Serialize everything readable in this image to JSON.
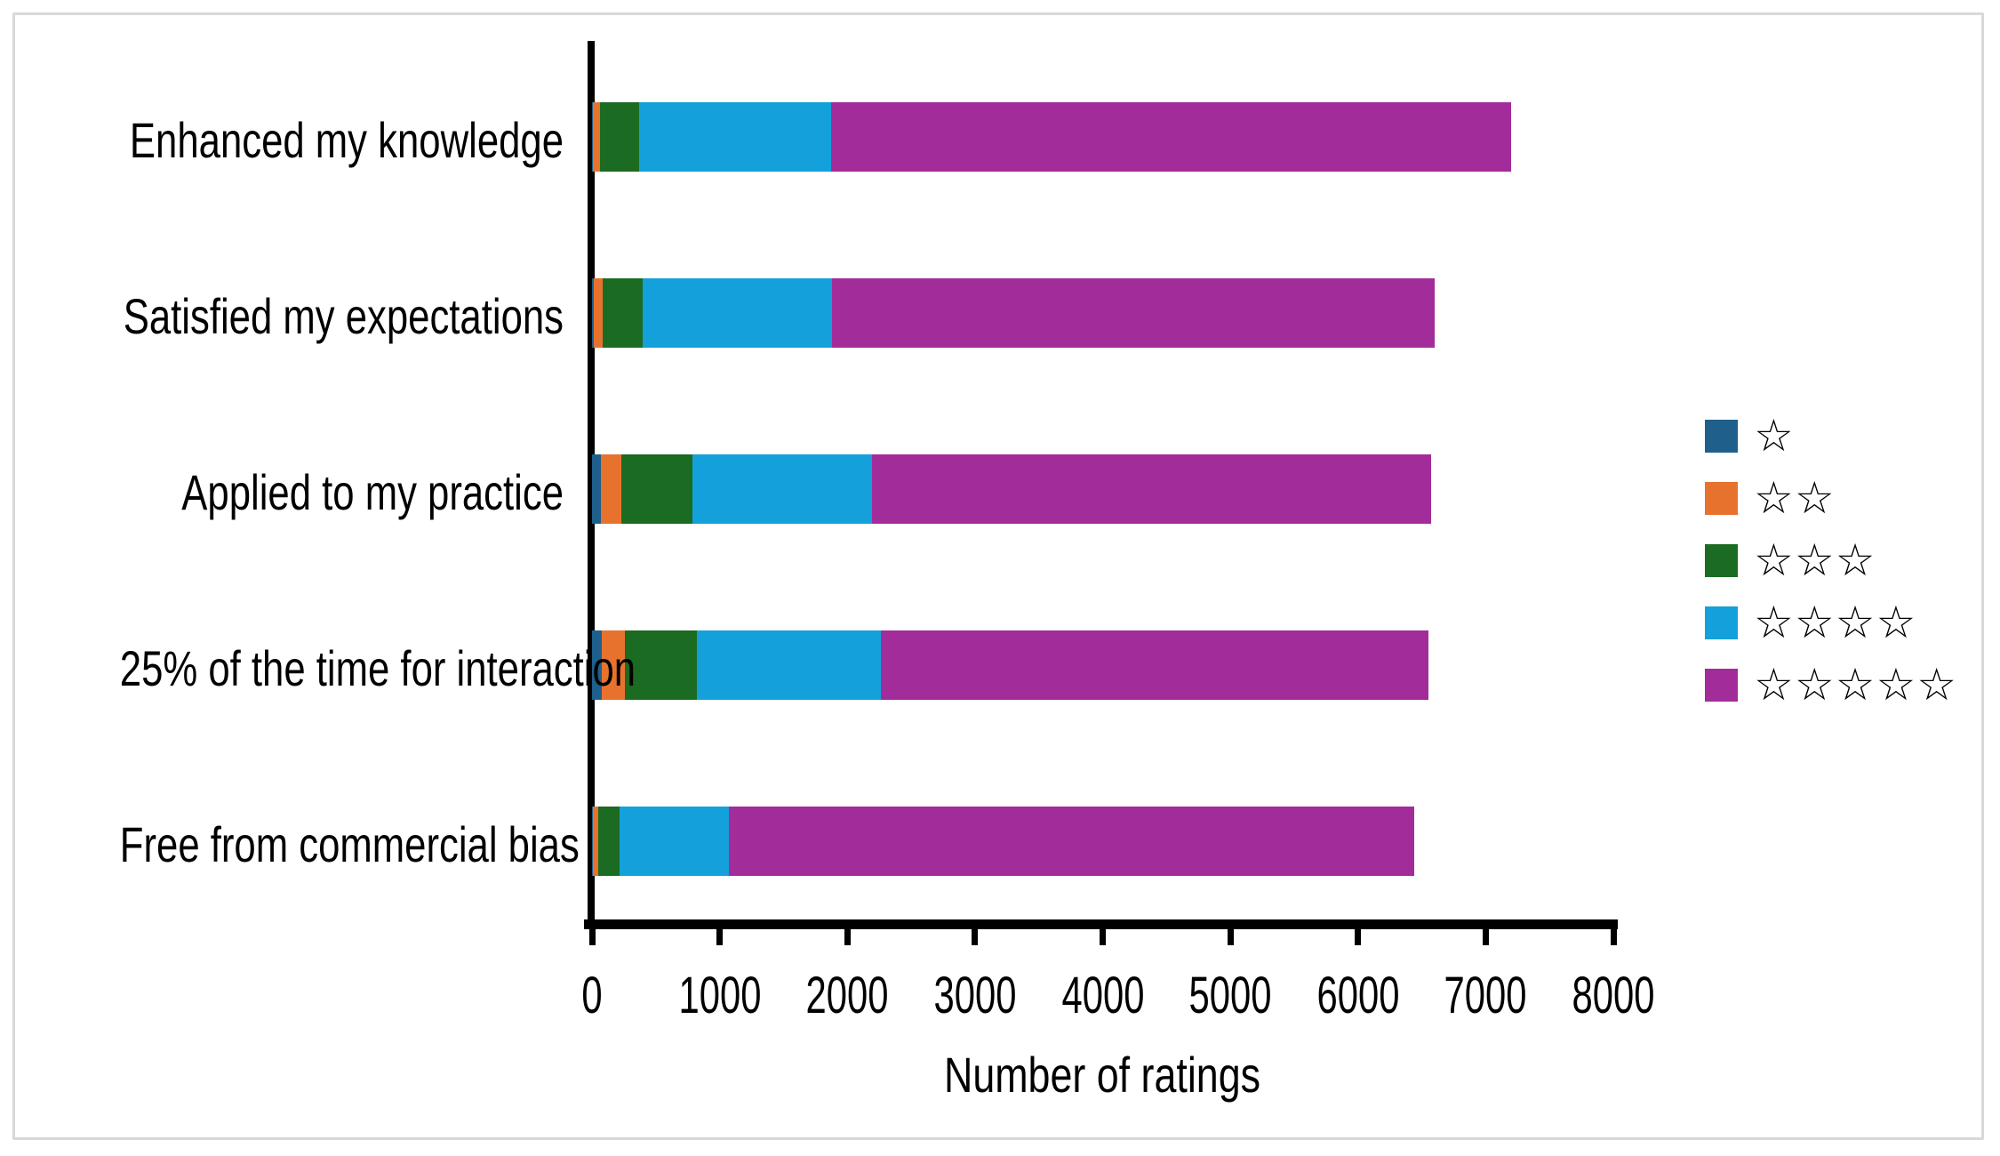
{
  "frame": {
    "background_color": "#ffffff",
    "border_color": "#d8d8d8",
    "axis_color": "#000000"
  },
  "chart_data": {
    "type": "bar",
    "variant": "horizontal-stacked",
    "title": "",
    "xlabel": "Number of ratings",
    "ylabel": "",
    "xlim": [
      0,
      8000
    ],
    "x_ticks": [
      0,
      1000,
      2000,
      3000,
      4000,
      5000,
      6000,
      7000,
      8000
    ],
    "grid": false,
    "legend_position": "right",
    "categories": [
      "Enhanced my knowledge",
      "Satisfied my expectations",
      "Applied to my practice",
      "25% of the time for interaction",
      "Free from commercial bias"
    ],
    "series": [
      {
        "name": "1 star",
        "symbol": "☆",
        "color": "#1f5f8b",
        "values": [
          10,
          15,
          70,
          80,
          10
        ]
      },
      {
        "name": "2 stars",
        "symbol": "☆☆",
        "color": "#e7722e",
        "values": [
          50,
          70,
          160,
          175,
          40
        ]
      },
      {
        "name": "3 stars",
        "symbol": "☆☆☆",
        "color": "#1c6b22",
        "values": [
          310,
          315,
          555,
          565,
          165
        ]
      },
      {
        "name": "4 stars",
        "symbol": "☆☆☆☆",
        "color": "#14a0da",
        "values": [
          1500,
          1480,
          1405,
          1445,
          855
        ]
      },
      {
        "name": "5 stars",
        "symbol": "☆☆☆☆☆",
        "color": "#a32c9b",
        "values": [
          5330,
          4720,
          4385,
          4290,
          5370
        ]
      }
    ],
    "totals": [
      7200,
      6600,
      6575,
      6555,
      6440
    ]
  }
}
